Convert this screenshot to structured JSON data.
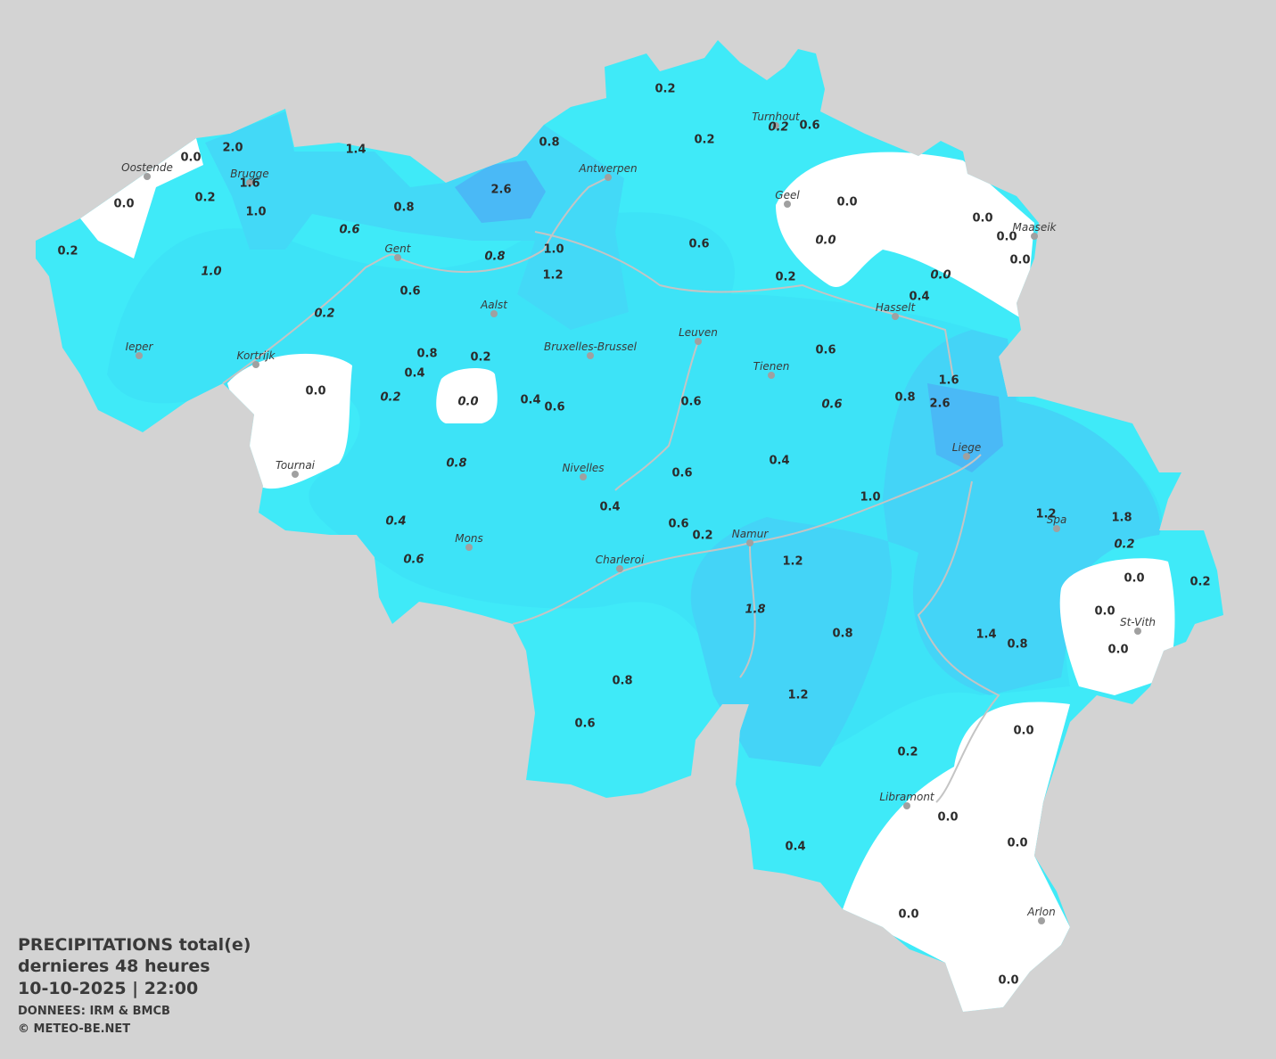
{
  "map": {
    "title": [
      "PRECIPITATIONS total(e)",
      "dernieres 48 heures",
      "10-10-2025  |  22:00"
    ],
    "credits": [
      "DONNEES: IRM & BMCB",
      "© METEO-BE.NET"
    ],
    "cities": [
      "Oostende",
      "Brugge",
      "Antwerpen",
      "Turnhout",
      "Geel",
      "Maaseik",
      "Gent",
      "Aalst",
      "Hasselt",
      "Leuven",
      "Ieper",
      "Kortrijk",
      "Bruxelles-Brussel",
      "Tienen",
      "Liege",
      "Tournai",
      "Nivelles",
      "Spa",
      "Mons",
      "Namur",
      "Charleroi",
      "St-Vith",
      "Libramont",
      "Arlon"
    ],
    "observed": [
      "0.2",
      "0.2",
      "0.6",
      "0.8",
      "2.0",
      "0.0",
      "1.4",
      "1.6",
      "0.2",
      "0.0",
      "1.0",
      "2.6",
      "0.8",
      "0.0",
      "0.0",
      "0.0",
      "0.0",
      "0.2",
      "1.0",
      "0.6",
      "1.2",
      "0.2",
      "0.4",
      "0.6",
      "0.8",
      "0.4",
      "0.2",
      "0.6",
      "0.0",
      "0.4",
      "0.6",
      "0.6",
      "1.6",
      "0.8",
      "2.6",
      "0.4",
      "0.6",
      "1.0",
      "0.4",
      "1.2",
      "1.8",
      "0.6",
      "0.2",
      "1.2",
      "0.0",
      "0.2",
      "0.0",
      "0.8",
      "1.4",
      "0.8",
      "0.0",
      "0.8",
      "1.2",
      "0.6",
      "0.0",
      "0.2",
      "0.0",
      "0.0",
      "0.4",
      "0.0",
      "0.0"
    ],
    "estimated": [
      "0.2",
      "0.0",
      "0.0",
      "0.6",
      "1.0",
      "0.8",
      "0.2",
      "0.0",
      "0.2",
      "0.6",
      "0.8",
      "0.4",
      "0.6",
      "0.2",
      "1.8"
    ]
  }
}
